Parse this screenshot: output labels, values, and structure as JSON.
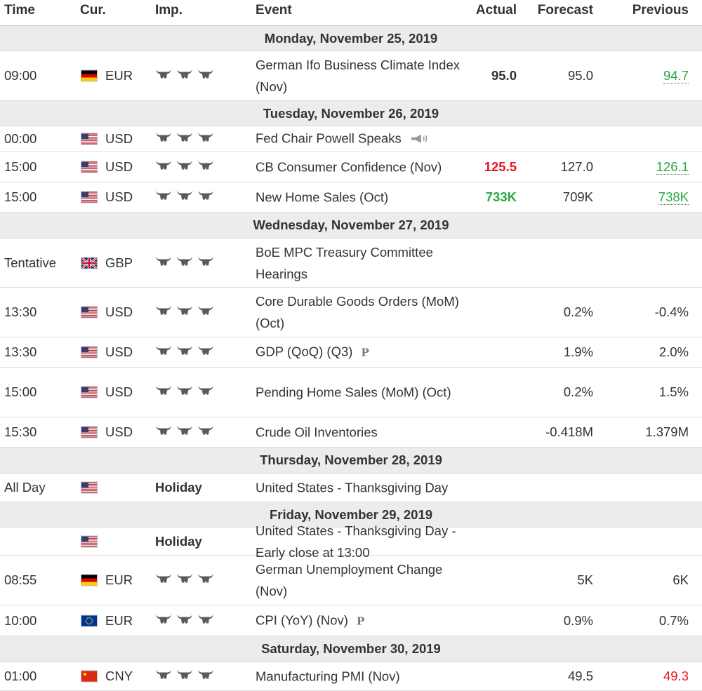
{
  "headers": {
    "time": "Time",
    "cur": "Cur.",
    "imp": "Imp.",
    "event": "Event",
    "actual": "Actual",
    "forecast": "Forecast",
    "previous": "Previous"
  },
  "colors": {
    "positive": "#2aa845",
    "negative": "#e8171c",
    "day_bg": "#ececec"
  },
  "days": [
    {
      "label": "Monday, November 25, 2019",
      "events": [
        {
          "time": "09:00",
          "flag": "de",
          "currency": "EUR",
          "importance": 3,
          "event": "German Ifo Business Climate Index (Nov)",
          "actual": "95.0",
          "forecast": "95.0",
          "previous": "94.7",
          "previous_color": "green",
          "previous_underline": true
        }
      ]
    },
    {
      "label": "Tuesday, November 26, 2019",
      "events": [
        {
          "time": "00:00",
          "flag": "us",
          "currency": "USD",
          "importance": 3,
          "event": "Fed Chair Powell Speaks",
          "icon": "speaker-icon",
          "actual": "",
          "forecast": "",
          "previous": ""
        },
        {
          "time": "15:00",
          "flag": "us",
          "currency": "USD",
          "importance": 3,
          "event": "CB Consumer Confidence (Nov)",
          "actual": "125.5",
          "actual_color": "red",
          "forecast": "127.0",
          "previous": "126.1",
          "previous_color": "green",
          "previous_underline": true
        },
        {
          "time": "15:00",
          "flag": "us",
          "currency": "USD",
          "importance": 3,
          "event": "New Home Sales (Oct)",
          "actual": "733K",
          "actual_color": "green",
          "forecast": "709K",
          "previous": "738K",
          "previous_color": "green",
          "previous_underline": true
        }
      ]
    },
    {
      "label": "Wednesday, November 27, 2019",
      "events": [
        {
          "time": "Tentative",
          "flag": "gb",
          "currency": "GBP",
          "importance": 3,
          "event": "BoE MPC Treasury Committee Hearings",
          "actual": "",
          "forecast": "",
          "previous": ""
        },
        {
          "time": "13:30",
          "flag": "us",
          "currency": "USD",
          "importance": 3,
          "event": "Core Durable Goods Orders (MoM) (Oct)",
          "actual": "",
          "forecast": "0.2%",
          "previous": "-0.4%"
        },
        {
          "time": "13:30",
          "flag": "us",
          "currency": "USD",
          "importance": 3,
          "event": "GDP (QoQ) (Q3)",
          "icon": "preliminary-icon",
          "icon_text": "P",
          "actual": "",
          "forecast": "1.9%",
          "previous": "2.0%"
        },
        {
          "time": "15:00",
          "flag": "us",
          "currency": "USD",
          "importance": 3,
          "event": "Pending Home Sales (MoM) (Oct)",
          "actual": "",
          "forecast": "0.2%",
          "previous": "1.5%"
        },
        {
          "time": "15:30",
          "flag": "us",
          "currency": "USD",
          "importance": 3,
          "event": "Crude Oil Inventories",
          "actual": "",
          "forecast": "-0.418M",
          "previous": "1.379M"
        }
      ]
    },
    {
      "label": "Thursday, November 28, 2019",
      "events": [
        {
          "time": "All Day",
          "flag": "us",
          "currency": "",
          "holiday": "Holiday",
          "event": "United States - Thanksgiving Day",
          "actual": "",
          "forecast": "",
          "previous": ""
        }
      ]
    },
    {
      "label": "Friday, November 29, 2019",
      "events": [
        {
          "time": "",
          "flag": "us",
          "currency": "",
          "holiday": "Holiday",
          "event": "United States - Thanksgiving Day - Early close at 13:00",
          "actual": "",
          "forecast": "",
          "previous": ""
        },
        {
          "time": "08:55",
          "flag": "de",
          "currency": "EUR",
          "importance": 3,
          "event": "German Unemployment Change (Nov)",
          "actual": "",
          "forecast": "5K",
          "previous": "6K"
        },
        {
          "time": "10:00",
          "flag": "eu",
          "currency": "EUR",
          "importance": 3,
          "event": "CPI (YoY) (Nov)",
          "icon": "preliminary-icon",
          "icon_text": "P",
          "actual": "",
          "forecast": "0.9%",
          "previous": "0.7%"
        }
      ]
    },
    {
      "label": "Saturday, November 30, 2019",
      "events": [
        {
          "time": "01:00",
          "flag": "cn",
          "currency": "CNY",
          "importance": 3,
          "event": "Manufacturing PMI (Nov)",
          "actual": "",
          "forecast": "49.5",
          "previous": "49.3",
          "previous_color": "red"
        }
      ]
    }
  ]
}
